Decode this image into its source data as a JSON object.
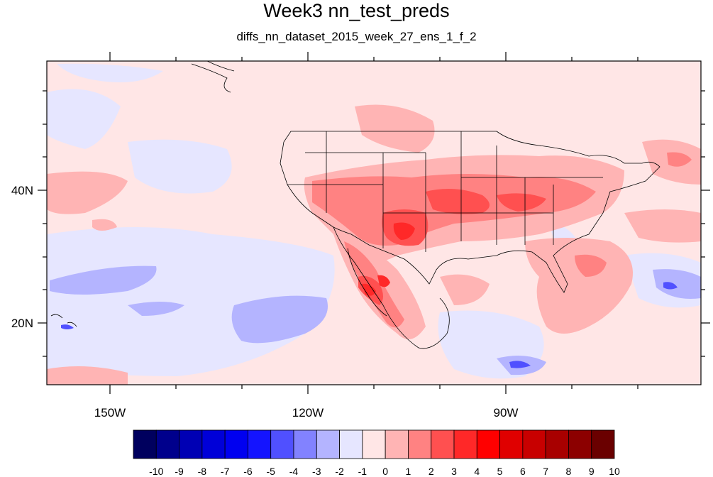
{
  "title": "Week3 nn_test_preds",
  "subtitle": "diffs_nn_dataset_2015_week_27_ens_1_f_2",
  "axes": {
    "lon_ticks": [
      "150W",
      "120W",
      "90W"
    ],
    "lat_ticks": [
      "40N",
      "20N"
    ]
  },
  "colorbar": {
    "labels": [
      "-10",
      "-9",
      "-8",
      "-7",
      "-6",
      "-5",
      "-4",
      "-3",
      "-2",
      "-1",
      "0",
      "1",
      "2",
      "3",
      "4",
      "5",
      "6",
      "7",
      "8",
      "9",
      "10"
    ],
    "colors": [
      "#00005e",
      "#00008c",
      "#0000b4",
      "#0000d8",
      "#0000f0",
      "#1414ff",
      "#5050ff",
      "#8282ff",
      "#b4b4ff",
      "#e6e6ff",
      "#ffe6e6",
      "#ffb4b4",
      "#ff8282",
      "#ff5050",
      "#ff2828",
      "#ff0000",
      "#e00000",
      "#c80000",
      "#a80000",
      "#8c0000",
      "#6a0000"
    ]
  },
  "colors": {
    "background_field": "#ffe6e6"
  }
}
